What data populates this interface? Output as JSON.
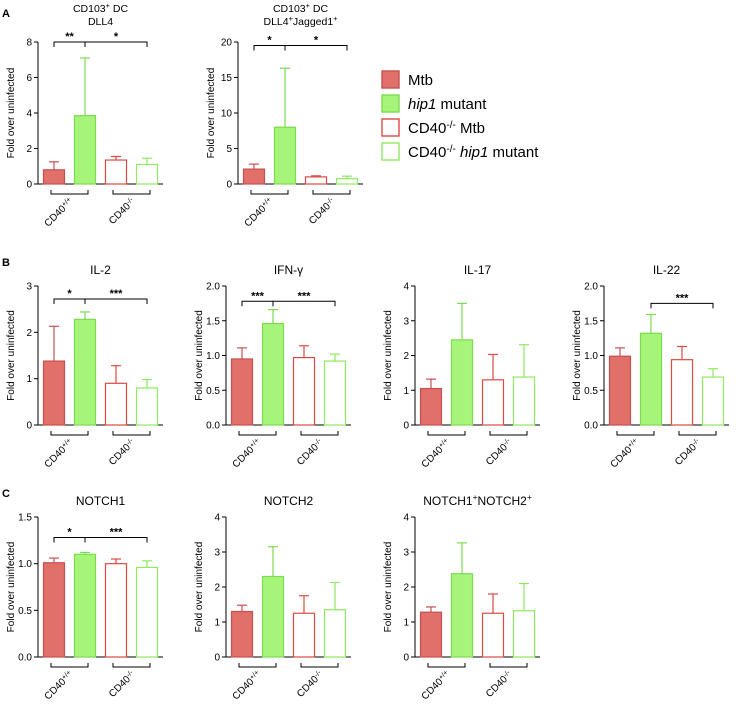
{
  "styles": {
    "mtb_fill": "#E07068",
    "mtb_edge": "#C85050",
    "hip1_fill": "#A6F57A",
    "hip1_edge": "#7DDB4E",
    "cd40ko_mtb_edge": "#DD4A42",
    "cd40ko_hip1_edge": "#8EEA5E"
  },
  "legend": {
    "items": [
      {
        "id": "mtb",
        "text": "Mtb",
        "italic": ""
      },
      {
        "id": "hip1",
        "text": "",
        "italic": "hip1",
        "suffix": " mutant"
      },
      {
        "id": "ko_mtb",
        "prefix": "CD40",
        "sup": "-/-",
        "text": " Mtb"
      },
      {
        "id": "ko_hip1",
        "prefix": "CD40",
        "sup": "-/-",
        "italic": "hip1",
        "suffix": " mutant"
      }
    ]
  },
  "panel_labels": [
    "A",
    "B",
    "C"
  ],
  "group_labels": {
    "wt_base": "CD40",
    "wt_sup": "+/+",
    "ko_base": "CD40",
    "ko_sup": "-/-"
  },
  "ylabel": "Fold over uninfected",
  "chart_data": [
    {
      "id": "a1",
      "type": "bar",
      "title_lines": [
        {
          "base": "CD103",
          "sup": "+",
          "rest": " DC"
        },
        {
          "base": "DLL4",
          "sup": "",
          "rest": ""
        }
      ],
      "ylim": [
        0,
        8
      ],
      "yticks": [
        0,
        2,
        4,
        6,
        8
      ],
      "ytick_labels": [
        "0",
        "2",
        "4",
        "6",
        "8"
      ],
      "series": [
        {
          "name": "Mtb",
          "value": 0.8,
          "err": 0.45
        },
        {
          "name": "hip1 mutant",
          "value": 3.85,
          "err": 3.25
        },
        {
          "name": "CD40-/- Mtb",
          "value": 1.35,
          "err": 0.2
        },
        {
          "name": "CD40-/- hip1 mutant",
          "value": 1.1,
          "err": 0.35
        }
      ],
      "sig": [
        {
          "from": 0,
          "to": 1,
          "y": 8.0,
          "label": "**"
        },
        {
          "from": 1,
          "to": 3,
          "y": 8.0,
          "label": "*"
        }
      ]
    },
    {
      "id": "a2",
      "type": "bar",
      "title_lines": [
        {
          "base": "CD103",
          "sup": "+",
          "rest": " DC"
        },
        {
          "base": "DLL4",
          "sup": "+",
          "rest": "Jagged1",
          "sup2": "+"
        }
      ],
      "ylim": [
        0,
        20
      ],
      "yticks": [
        0,
        5,
        10,
        15,
        20
      ],
      "ytick_labels": [
        "0",
        "5",
        "10",
        "15",
        "20"
      ],
      "series": [
        {
          "name": "Mtb",
          "value": 2.1,
          "err": 0.7
        },
        {
          "name": "hip1 mutant",
          "value": 8.0,
          "err": 8.3
        },
        {
          "name": "CD40-/- Mtb",
          "value": 1.0,
          "err": 0.15
        },
        {
          "name": "CD40-/- hip1 mutant",
          "value": 0.75,
          "err": 0.35
        }
      ],
      "sig": [
        {
          "from": 0,
          "to": 1,
          "y": 19.5,
          "label": "*"
        },
        {
          "from": 1,
          "to": 3,
          "y": 19.5,
          "label": "*"
        }
      ]
    },
    {
      "id": "b1",
      "type": "bar",
      "title_lines": [
        {
          "base": "IL-2",
          "sup": "",
          "rest": ""
        }
      ],
      "ylim": [
        0,
        3
      ],
      "yticks": [
        0,
        1,
        2,
        3
      ],
      "ytick_labels": [
        "0",
        "1",
        "2",
        "3"
      ],
      "series": [
        {
          "name": "Mtb",
          "value": 1.38,
          "err": 0.75
        },
        {
          "name": "hip1 mutant",
          "value": 2.28,
          "err": 0.16
        },
        {
          "name": "CD40-/- Mtb",
          "value": 0.9,
          "err": 0.38
        },
        {
          "name": "CD40-/- hip1 mutant",
          "value": 0.8,
          "err": 0.18
        }
      ],
      "sig": [
        {
          "from": 0,
          "to": 1,
          "y": 2.72,
          "label": "*"
        },
        {
          "from": 1,
          "to": 3,
          "y": 2.72,
          "label": "***"
        }
      ]
    },
    {
      "id": "b2",
      "type": "bar",
      "title_lines": [
        {
          "base": "IFN-γ",
          "sup": "",
          "rest": ""
        }
      ],
      "ylim": [
        0,
        2.0
      ],
      "yticks": [
        0,
        0.5,
        1.0,
        1.5,
        2.0
      ],
      "ytick_labels": [
        "0.0",
        "0.5",
        "1.0",
        "1.5",
        "2.0"
      ],
      "series": [
        {
          "name": "Mtb",
          "value": 0.95,
          "err": 0.16
        },
        {
          "name": "hip1 mutant",
          "value": 1.46,
          "err": 0.2
        },
        {
          "name": "CD40-/- Mtb",
          "value": 0.97,
          "err": 0.17
        },
        {
          "name": "CD40-/- hip1 mutant",
          "value": 0.92,
          "err": 0.1
        }
      ],
      "sig": [
        {
          "from": 0,
          "to": 1,
          "y": 1.78,
          "label": "***"
        },
        {
          "from": 1,
          "to": 3,
          "y": 1.78,
          "label": "***"
        }
      ]
    },
    {
      "id": "b3",
      "type": "bar",
      "title_lines": [
        {
          "base": "IL-17",
          "sup": "",
          "rest": ""
        }
      ],
      "ylim": [
        0,
        4
      ],
      "yticks": [
        0,
        1,
        2,
        3,
        4
      ],
      "ytick_labels": [
        "0",
        "1",
        "2",
        "3",
        "4"
      ],
      "series": [
        {
          "name": "Mtb",
          "value": 1.05,
          "err": 0.27
        },
        {
          "name": "hip1 mutant",
          "value": 2.45,
          "err": 1.05
        },
        {
          "name": "CD40-/- Mtb",
          "value": 1.3,
          "err": 0.73
        },
        {
          "name": "CD40-/- hip1 mutant",
          "value": 1.38,
          "err": 0.93
        }
      ],
      "sig": []
    },
    {
      "id": "b4",
      "type": "bar",
      "title_lines": [
        {
          "base": "IL-22",
          "sup": "",
          "rest": ""
        }
      ],
      "ylim": [
        0,
        2.0
      ],
      "yticks": [
        0,
        0.5,
        1.0,
        1.5,
        2.0
      ],
      "ytick_labels": [
        "0.0",
        "0.5",
        "1.0",
        "1.5",
        "2.0"
      ],
      "series": [
        {
          "name": "Mtb",
          "value": 0.99,
          "err": 0.12
        },
        {
          "name": "hip1 mutant",
          "value": 1.32,
          "err": 0.27
        },
        {
          "name": "CD40-/- Mtb",
          "value": 0.94,
          "err": 0.19
        },
        {
          "name": "CD40-/- hip1 mutant",
          "value": 0.69,
          "err": 0.12
        }
      ],
      "sig": [
        {
          "from": 1,
          "to": 3,
          "y": 1.75,
          "label": "***"
        }
      ]
    },
    {
      "id": "c1",
      "type": "bar",
      "title_lines": [
        {
          "base": "NOTCH1",
          "sup": "",
          "rest": ""
        }
      ],
      "ylim": [
        0,
        1.5
      ],
      "yticks": [
        0,
        0.5,
        1.0,
        1.5
      ],
      "ytick_labels": [
        "0.0",
        "0.5",
        "1.0",
        "1.5"
      ],
      "series": [
        {
          "name": "Mtb",
          "value": 1.01,
          "err": 0.05
        },
        {
          "name": "hip1 mutant",
          "value": 1.1,
          "err": 0.02
        },
        {
          "name": "CD40-/- Mtb",
          "value": 1.0,
          "err": 0.05
        },
        {
          "name": "CD40-/- hip1 mutant",
          "value": 0.96,
          "err": 0.07
        }
      ],
      "sig": [
        {
          "from": 0,
          "to": 1,
          "y": 1.28,
          "label": "*"
        },
        {
          "from": 1,
          "to": 3,
          "y": 1.28,
          "label": "***"
        }
      ]
    },
    {
      "id": "c2",
      "type": "bar",
      "title_lines": [
        {
          "base": "NOTCH2",
          "sup": "",
          "rest": ""
        }
      ],
      "ylim": [
        0,
        4
      ],
      "yticks": [
        0,
        1,
        2,
        3,
        4
      ],
      "ytick_labels": [
        "0",
        "1",
        "2",
        "3",
        "4"
      ],
      "series": [
        {
          "name": "Mtb",
          "value": 1.3,
          "err": 0.18
        },
        {
          "name": "hip1 mutant",
          "value": 2.3,
          "err": 0.85
        },
        {
          "name": "CD40-/- Mtb",
          "value": 1.25,
          "err": 0.5
        },
        {
          "name": "CD40-/- hip1 mutant",
          "value": 1.35,
          "err": 0.78
        }
      ],
      "sig": []
    },
    {
      "id": "c3",
      "type": "bar",
      "title_lines": [
        {
          "base": "NOTCH1",
          "sup": "+",
          "rest": "NOTCH2",
          "sup2": "+"
        }
      ],
      "ylim": [
        0,
        4
      ],
      "yticks": [
        0,
        1,
        2,
        3,
        4
      ],
      "ytick_labels": [
        "0",
        "1",
        "2",
        "3",
        "4"
      ],
      "series": [
        {
          "name": "Mtb",
          "value": 1.28,
          "err": 0.15
        },
        {
          "name": "hip1 mutant",
          "value": 2.38,
          "err": 0.88
        },
        {
          "name": "CD40-/- Mtb",
          "value": 1.25,
          "err": 0.55
        },
        {
          "name": "CD40-/- hip1 mutant",
          "value": 1.32,
          "err": 0.78
        }
      ],
      "sig": []
    }
  ]
}
